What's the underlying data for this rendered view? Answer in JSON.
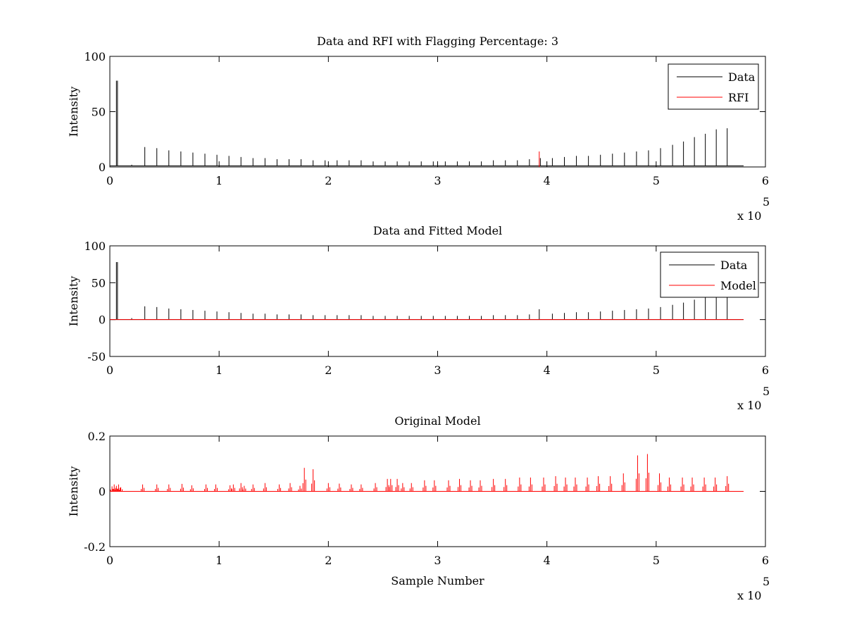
{
  "chart_data": [
    {
      "type": "line",
      "title": "Data and RFI with Flagging Percentage: 3",
      "xlabel": "",
      "ylabel": "Intensity",
      "xlim": [
        0,
        6
      ],
      "ylim": [
        0,
        100
      ],
      "x_scale_label": "x 10",
      "x_scale_exponent": "5",
      "xticks": [
        "0",
        "1",
        "2",
        "3",
        "4",
        "5",
        "6"
      ],
      "yticks": [
        "0",
        "50",
        "100"
      ],
      "grid": false,
      "legend": "top-right",
      "series": [
        {
          "name": "Data",
          "color": "#000000",
          "baseline": 1,
          "x_end": 5.8,
          "spikes": [
            [
              0.06,
              78
            ],
            [
              0.07,
              78
            ],
            [
              0.2,
              2
            ],
            [
              0.32,
              18
            ],
            [
              0.43,
              17
            ],
            [
              0.54,
              15
            ],
            [
              0.65,
              14
            ],
            [
              0.76,
              13
            ],
            [
              0.87,
              12
            ],
            [
              0.98,
              11
            ],
            [
              1.09,
              10
            ],
            [
              1.2,
              9
            ],
            [
              1.31,
              8
            ],
            [
              1.42,
              8
            ],
            [
              1.53,
              7
            ],
            [
              1.64,
              7
            ],
            [
              1.75,
              7
            ],
            [
              1.86,
              6
            ],
            [
              1.97,
              6
            ],
            [
              2.08,
              6
            ],
            [
              2.19,
              6
            ],
            [
              2.3,
              6
            ],
            [
              2.41,
              5
            ],
            [
              2.52,
              5
            ],
            [
              2.63,
              5
            ],
            [
              2.74,
              5
            ],
            [
              2.85,
              5
            ],
            [
              2.96,
              5
            ],
            [
              3.07,
              5
            ],
            [
              3.18,
              5
            ],
            [
              3.29,
              5
            ],
            [
              3.4,
              5
            ],
            [
              3.51,
              6
            ],
            [
              3.62,
              6
            ],
            [
              3.73,
              6
            ],
            [
              3.84,
              7
            ],
            [
              3.94,
              8
            ],
            [
              4.05,
              8
            ],
            [
              4.16,
              9
            ],
            [
              4.27,
              10
            ],
            [
              4.38,
              10
            ],
            [
              4.49,
              11
            ],
            [
              4.6,
              12
            ],
            [
              4.71,
              13
            ],
            [
              4.82,
              14
            ],
            [
              4.93,
              15
            ],
            [
              5.04,
              17
            ],
            [
              5.15,
              20
            ],
            [
              5.25,
              23
            ],
            [
              5.35,
              27
            ],
            [
              5.45,
              30
            ],
            [
              5.55,
              34
            ],
            [
              5.65,
              35
            ]
          ]
        },
        {
          "name": "RFI",
          "color": "#ff0000",
          "spikes": [
            [
              3.93,
              14
            ]
          ]
        }
      ]
    },
    {
      "type": "line",
      "title": "Data and Fitted Model",
      "xlabel": "",
      "ylabel": "Intensity",
      "xlim": [
        0,
        6
      ],
      "ylim": [
        -50,
        100
      ],
      "x_scale_label": "x 10",
      "x_scale_exponent": "5",
      "xticks": [
        "0",
        "1",
        "2",
        "3",
        "4",
        "5",
        "6"
      ],
      "yticks": [
        "-50",
        "0",
        "50",
        "100"
      ],
      "grid": false,
      "legend": "top-right",
      "series": [
        {
          "name": "Data",
          "color": "#000000",
          "baseline": 0,
          "x_end": 5.8,
          "spikes": [
            [
              0.06,
              78
            ],
            [
              0.07,
              78
            ],
            [
              0.2,
              2
            ],
            [
              0.32,
              18
            ],
            [
              0.43,
              17
            ],
            [
              0.54,
              15
            ],
            [
              0.65,
              14
            ],
            [
              0.76,
              13
            ],
            [
              0.87,
              12
            ],
            [
              0.98,
              11
            ],
            [
              1.09,
              10
            ],
            [
              1.2,
              9
            ],
            [
              1.31,
              8
            ],
            [
              1.42,
              8
            ],
            [
              1.53,
              7
            ],
            [
              1.64,
              7
            ],
            [
              1.75,
              7
            ],
            [
              1.86,
              6
            ],
            [
              1.97,
              6
            ],
            [
              2.08,
              6
            ],
            [
              2.19,
              6
            ],
            [
              2.3,
              6
            ],
            [
              2.41,
              5
            ],
            [
              2.52,
              5
            ],
            [
              2.63,
              5
            ],
            [
              2.74,
              5
            ],
            [
              2.85,
              5
            ],
            [
              2.96,
              5
            ],
            [
              3.07,
              5
            ],
            [
              3.18,
              5
            ],
            [
              3.29,
              5
            ],
            [
              3.4,
              5
            ],
            [
              3.51,
              6
            ],
            [
              3.62,
              6
            ],
            [
              3.73,
              6
            ],
            [
              3.84,
              7
            ],
            [
              3.93,
              14
            ],
            [
              4.05,
              8
            ],
            [
              4.16,
              9
            ],
            [
              4.27,
              10
            ],
            [
              4.38,
              10
            ],
            [
              4.49,
              11
            ],
            [
              4.6,
              12
            ],
            [
              4.71,
              13
            ],
            [
              4.82,
              14
            ],
            [
              4.93,
              15
            ],
            [
              5.04,
              17
            ],
            [
              5.15,
              20
            ],
            [
              5.25,
              23
            ],
            [
              5.35,
              27
            ],
            [
              5.45,
              30
            ],
            [
              5.55,
              34
            ],
            [
              5.65,
              35
            ]
          ]
        },
        {
          "name": "Model",
          "color": "#ff0000",
          "baseline": 0,
          "x_end": 5.8,
          "spikes": []
        }
      ]
    },
    {
      "type": "line",
      "title": "Original Model",
      "xlabel": "Sample Number",
      "ylabel": "Intensity",
      "xlim": [
        0,
        6
      ],
      "ylim": [
        -0.2,
        0.2
      ],
      "x_scale_label": "x 10",
      "x_scale_exponent": "5",
      "xticks": [
        "0",
        "1",
        "2",
        "3",
        "4",
        "5",
        "6"
      ],
      "yticks": [
        "-0.2",
        "0",
        "0.2"
      ],
      "grid": false,
      "legend": "none",
      "series": [
        {
          "name": "",
          "color": "#ff0000",
          "baseline": 0,
          "x_end": 5.8,
          "spikes": [
            [
              0.02,
              0.018
            ],
            [
              0.04,
              0.025
            ],
            [
              0.06,
              0.02
            ],
            [
              0.08,
              0.025
            ],
            [
              0.1,
              0.015
            ],
            [
              0.3,
              0.025
            ],
            [
              0.43,
              0.025
            ],
            [
              0.54,
              0.025
            ],
            [
              0.66,
              0.027
            ],
            [
              0.75,
              0.022
            ],
            [
              0.88,
              0.025
            ],
            [
              0.97,
              0.025
            ],
            [
              1.1,
              0.022
            ],
            [
              1.13,
              0.025
            ],
            [
              1.2,
              0.03
            ],
            [
              1.23,
              0.02
            ],
            [
              1.31,
              0.025
            ],
            [
              1.42,
              0.03
            ],
            [
              1.55,
              0.025
            ],
            [
              1.65,
              0.03
            ],
            [
              1.74,
              0.02
            ],
            [
              1.78,
              0.085
            ],
            [
              1.86,
              0.08
            ],
            [
              2.0,
              0.03
            ],
            [
              2.1,
              0.028
            ],
            [
              2.21,
              0.025
            ],
            [
              2.3,
              0.025
            ],
            [
              2.43,
              0.03
            ],
            [
              2.54,
              0.045
            ],
            [
              2.57,
              0.045
            ],
            [
              2.63,
              0.045
            ],
            [
              2.68,
              0.03
            ],
            [
              2.76,
              0.03
            ],
            [
              2.88,
              0.04
            ],
            [
              2.97,
              0.04
            ],
            [
              3.1,
              0.04
            ],
            [
              3.2,
              0.045
            ],
            [
              3.3,
              0.04
            ],
            [
              3.39,
              0.04
            ],
            [
              3.51,
              0.045
            ],
            [
              3.62,
              0.045
            ],
            [
              3.75,
              0.05
            ],
            [
              3.85,
              0.05
            ],
            [
              3.97,
              0.05
            ],
            [
              4.08,
              0.055
            ],
            [
              4.17,
              0.05
            ],
            [
              4.26,
              0.05
            ],
            [
              4.37,
              0.05
            ],
            [
              4.47,
              0.055
            ],
            [
              4.58,
              0.055
            ],
            [
              4.7,
              0.065
            ],
            [
              4.83,
              0.13
            ],
            [
              4.92,
              0.135
            ],
            [
              5.03,
              0.065
            ],
            [
              5.12,
              0.05
            ],
            [
              5.24,
              0.05
            ],
            [
              5.33,
              0.05
            ],
            [
              5.44,
              0.05
            ],
            [
              5.54,
              0.05
            ],
            [
              5.65,
              0.055
            ]
          ]
        }
      ]
    }
  ]
}
